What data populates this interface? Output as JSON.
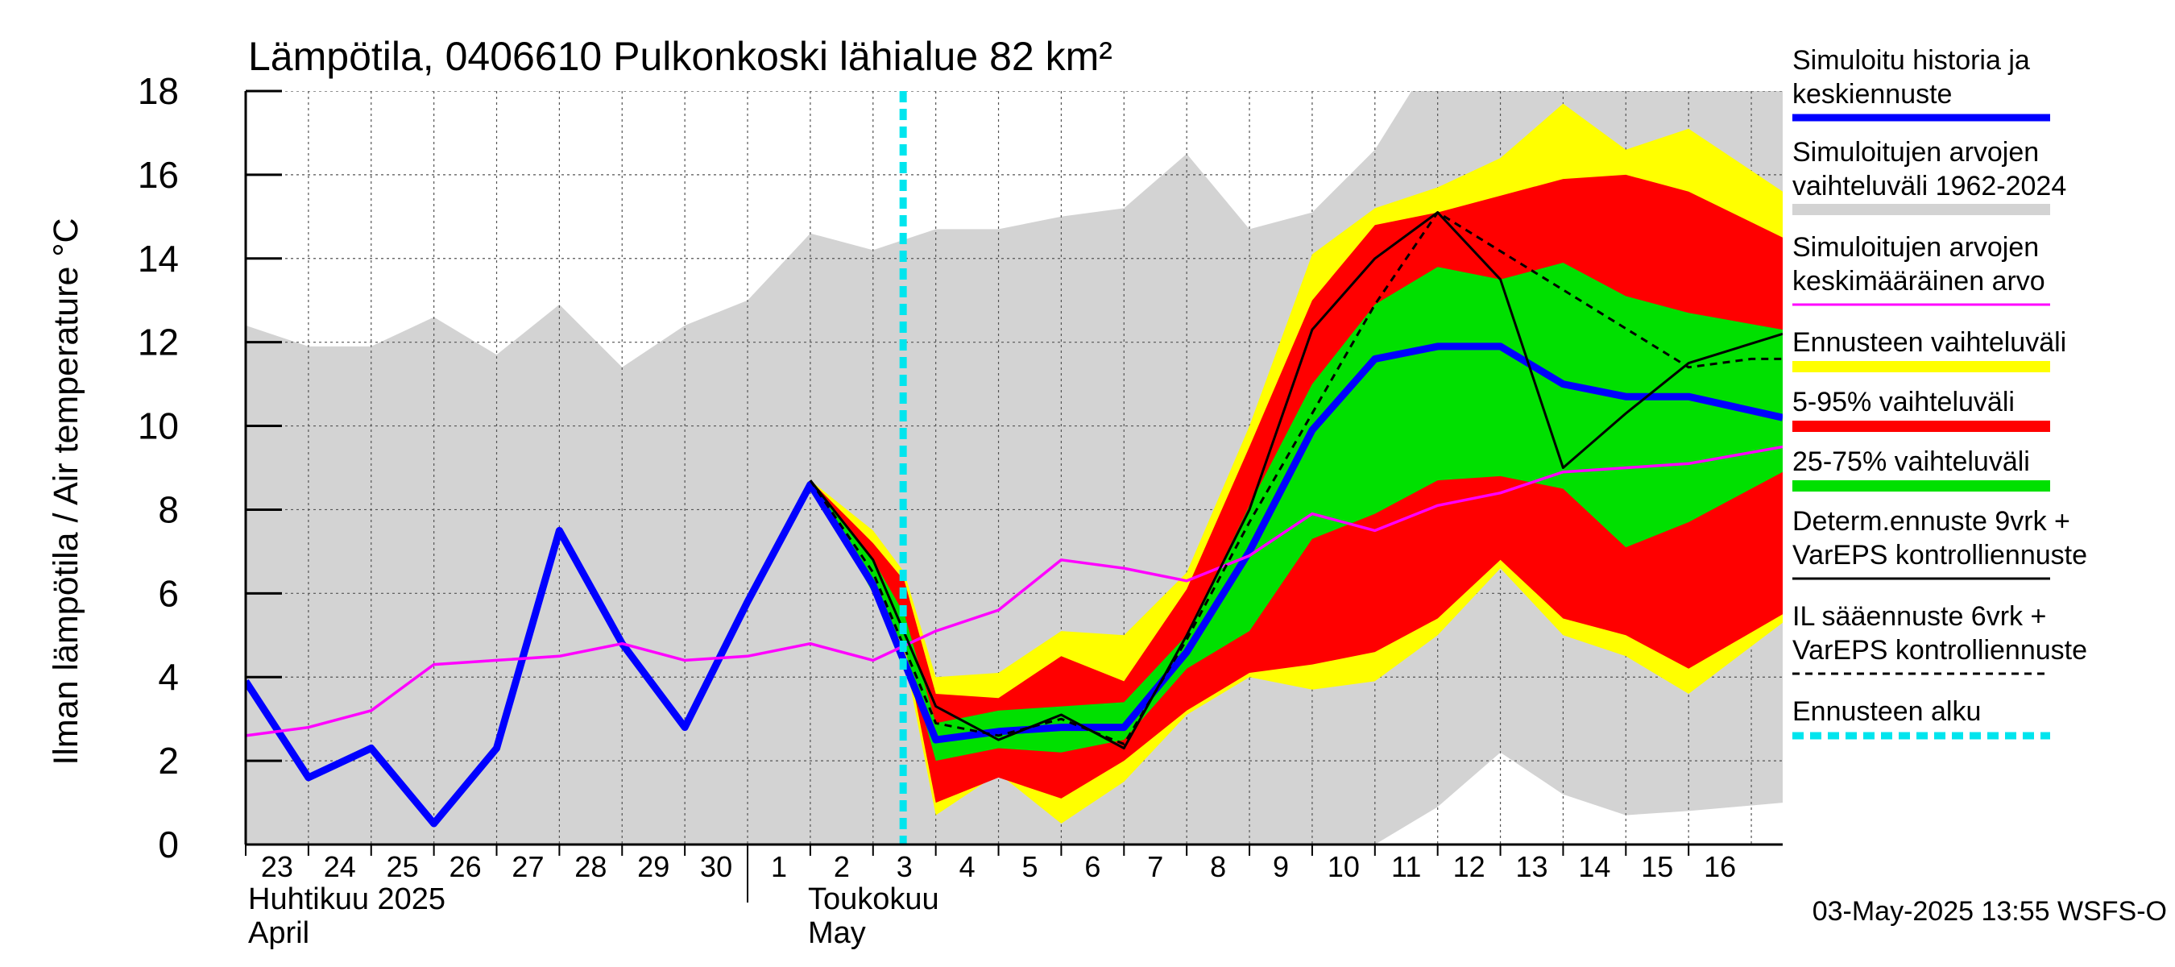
{
  "chart_data": {
    "type": "area",
    "title": "Lämpötila, 0406610 Pulkonkoski lähialue 82 km²",
    "ylabel": "Ilman lämpötila / Air temperature   °C",
    "ylim": [
      0,
      18
    ],
    "yticks": [
      0,
      2,
      4,
      6,
      8,
      10,
      12,
      14,
      16,
      18
    ],
    "x_start_day": 23,
    "x_days": 24.5,
    "xtick_labels": [
      "23",
      "24",
      "25",
      "26",
      "27",
      "28",
      "29",
      "30",
      "1",
      "2",
      "3",
      "4",
      "5",
      "6",
      "7",
      "8",
      "9",
      "10",
      "11",
      "12",
      "13",
      "14",
      "15",
      "16"
    ],
    "month_labels": [
      {
        "fi": "Huhtikuu  2025",
        "en": "April"
      },
      {
        "fi": "Toukokuu",
        "en": "May"
      }
    ],
    "forecast_start_day": 33.48,
    "grey_band": {
      "x": [
        23,
        24,
        25,
        26,
        27,
        28,
        29,
        30,
        31,
        32,
        33,
        34,
        35,
        36,
        37,
        38,
        39,
        40,
        41,
        42,
        43,
        44,
        45,
        46,
        47.5
      ],
      "upper": [
        12.4,
        11.9,
        11.9,
        12.6,
        11.7,
        12.9,
        11.4,
        12.4,
        13.0,
        14.6,
        14.2,
        14.7,
        14.7,
        15.0,
        15.2,
        16.5,
        14.7,
        15.1,
        16.6,
        19,
        19,
        19,
        19,
        19,
        19
      ],
      "lower": [
        0,
        0,
        0,
        0,
        0,
        0,
        0,
        0,
        0,
        0,
        0,
        0,
        0,
        0,
        0,
        0,
        0,
        0,
        0,
        0.9,
        2.2,
        1.2,
        0.7,
        0.8,
        1.0
      ]
    },
    "yellow_band": {
      "x": [
        32,
        33,
        33.5,
        34,
        35,
        36,
        37,
        38,
        39,
        40,
        41,
        42,
        43,
        44,
        45,
        46,
        47.5
      ],
      "upper": [
        8.7,
        7.5,
        6.5,
        4.0,
        4.1,
        5.1,
        5.0,
        6.5,
        10.0,
        14.1,
        15.2,
        15.7,
        16.4,
        17.7,
        16.6,
        17.1,
        15.6
      ],
      "lower": [
        8.7,
        6.0,
        4.5,
        0.7,
        1.7,
        0.5,
        1.5,
        3.1,
        4.0,
        3.7,
        3.9,
        5.0,
        6.6,
        5.0,
        4.5,
        3.6,
        5.3
      ]
    },
    "red_band": {
      "x": [
        32,
        33,
        33.5,
        34,
        35,
        36,
        37,
        38,
        39,
        40,
        41,
        42,
        43,
        44,
        45,
        46,
        47.5
      ],
      "upper": [
        8.7,
        7.2,
        6.3,
        3.6,
        3.5,
        4.5,
        3.9,
        6.1,
        9.5,
        13.0,
        14.8,
        15.1,
        15.5,
        15.9,
        16.0,
        15.6,
        14.5
      ],
      "lower": [
        8.7,
        6.4,
        4.8,
        1.0,
        1.6,
        1.1,
        2.0,
        3.2,
        4.1,
        4.3,
        4.6,
        5.4,
        6.8,
        5.4,
        5.0,
        4.2,
        5.5
      ]
    },
    "green_band": {
      "x": [
        32,
        33,
        33.5,
        34,
        35,
        36,
        37,
        38,
        39,
        40,
        41,
        42,
        43,
        44,
        45,
        46,
        47.5
      ],
      "upper": [
        8.7,
        6.8,
        5.5,
        2.9,
        3.2,
        3.3,
        3.4,
        5.0,
        8.1,
        11.0,
        12.9,
        13.8,
        13.5,
        13.9,
        13.1,
        12.7,
        12.3
      ],
      "lower": [
        8.7,
        6.0,
        4.7,
        2.0,
        2.3,
        2.2,
        2.5,
        4.2,
        5.1,
        7.3,
        7.9,
        8.7,
        8.8,
        8.5,
        7.1,
        7.7,
        8.9
      ]
    },
    "series": [
      {
        "name": "Simuloitu historia ja keskiennuste",
        "color": "#0000ff",
        "x": [
          23,
          24,
          25,
          26,
          27,
          28,
          29,
          30,
          31,
          32,
          33,
          34,
          35,
          36,
          37,
          38,
          39,
          40,
          41,
          42,
          43,
          44,
          45,
          46,
          47.5
        ],
        "values": [
          3.9,
          1.6,
          2.3,
          0.5,
          2.3,
          7.5,
          4.8,
          2.8,
          5.8,
          8.6,
          6.2,
          2.5,
          2.7,
          2.8,
          2.8,
          4.6,
          7.0,
          9.9,
          11.6,
          11.9,
          11.9,
          11.0,
          10.7,
          10.7,
          10.2
        ]
      },
      {
        "name": "Simuloitujen arvojen keskimääräinen arvo",
        "color": "#ff00ff",
        "x": [
          23,
          24,
          25,
          26,
          27,
          28,
          29,
          30,
          31,
          32,
          33,
          34,
          35,
          36,
          37,
          38,
          39,
          40,
          41,
          42,
          43,
          44,
          45,
          46,
          47.5
        ],
        "values": [
          2.6,
          2.8,
          3.2,
          4.3,
          4.4,
          4.5,
          4.8,
          4.4,
          4.5,
          4.8,
          4.4,
          5.1,
          5.6,
          6.8,
          6.6,
          6.3,
          6.9,
          7.9,
          7.5,
          8.1,
          8.4,
          8.9,
          9.0,
          9.1,
          9.5
        ]
      },
      {
        "name": "Determ.ennuste 9vrk + VarEPS kontrolliennuste",
        "color": "#000000",
        "x": [
          32,
          33,
          34,
          35,
          36,
          37,
          38,
          39,
          40,
          41,
          42,
          43,
          44,
          45,
          46,
          47.5
        ],
        "values": [
          8.7,
          6.8,
          3.3,
          2.5,
          3.1,
          2.3,
          5.0,
          8.0,
          12.3,
          14.0,
          15.1,
          13.5,
          9.0,
          10.3,
          11.5,
          12.2
        ]
      },
      {
        "name": "IL sääennuste 6vrk + VarEPS kontrolliennuste",
        "color": "#000000",
        "dashed": true,
        "x": [
          32,
          33,
          34,
          35,
          36,
          37,
          38,
          39,
          40,
          41,
          42,
          46,
          47,
          47.5
        ],
        "values": [
          8.7,
          6.5,
          2.9,
          2.6,
          3.0,
          2.4,
          4.9,
          7.7,
          10.3,
          12.9,
          15.1,
          11.4,
          11.6,
          11.6
        ]
      }
    ],
    "legend": [
      {
        "line1": "Simuloitu historia ja",
        "line2": "keskiennuste",
        "color": "#0000ff",
        "style": "line"
      },
      {
        "line1": "Simuloitujen arvojen",
        "line2": "vaihteluväli 1962-2024",
        "color": "#d3d3d3",
        "style": "band"
      },
      {
        "line1": "Simuloitujen arvojen",
        "line2": "keskimääräinen arvo",
        "color": "#ff00ff",
        "style": "thin"
      },
      {
        "line1": "Ennusteen vaihteluväli",
        "line2": "",
        "color": "#ffff00",
        "style": "band"
      },
      {
        "line1": "5-95% vaihteluväli",
        "line2": "",
        "color": "#ff0000",
        "style": "band"
      },
      {
        "line1": "25-75% vaihteluväli",
        "line2": "",
        "color": "#00e000",
        "style": "band"
      },
      {
        "line1": "Determ.ennuste 9vrk +",
        "line2": "VarEPS kontrolliennuste",
        "color": "#000000",
        "style": "thin"
      },
      {
        "line1": "IL sääennuste 6vrk  +",
        "line2": "  VarEPS kontrolliennuste",
        "color": "#000000",
        "style": "dashed"
      },
      {
        "line1": "Ennusteen alku",
        "line2": "",
        "color": "#00e5ee",
        "style": "cyan"
      }
    ],
    "timestamp": "03-May-2025 13:55 WSFS-O"
  }
}
